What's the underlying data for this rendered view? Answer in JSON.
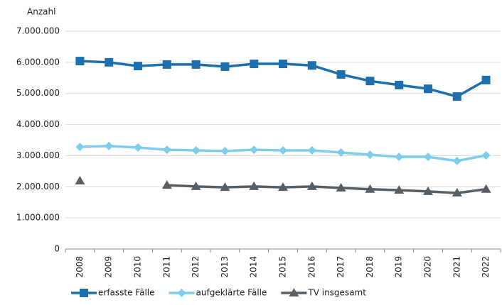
{
  "chart_data": {
    "type": "line",
    "y_axis_label": "Anzahl",
    "categories": [
      "2008",
      "2009",
      "2010",
      "2011",
      "2012",
      "2013",
      "2014",
      "2015",
      "2016",
      "2017",
      "2018",
      "2019",
      "2020",
      "2021",
      "2022"
    ],
    "ylim": [
      0,
      7000000
    ],
    "yticks": [
      0,
      {
        "value": 1000000,
        "label": "1.000.000"
      },
      {
        "value": 2000000,
        "label": "2.000.000"
      },
      {
        "value": 3000000,
        "label": "3.000.000"
      },
      {
        "value": 4000000,
        "label": "4.000.000"
      },
      {
        "value": 5000000,
        "label": "5.000.000"
      },
      {
        "value": 6000000,
        "label": "6.000.000"
      },
      {
        "value": 7000000,
        "label": "7.000.000"
      }
    ],
    "grid": true,
    "legend": "bottom",
    "series": [
      {
        "name": "erfasste Fälle",
        "color": "#1d6fae",
        "marker": "square",
        "values": [
          6040000,
          6000000,
          5880000,
          5930000,
          5930000,
          5860000,
          5950000,
          5950000,
          5900000,
          5610000,
          5400000,
          5270000,
          5150000,
          4900000,
          5430000
        ]
      },
      {
        "name": "aufgeklärte Fälle",
        "color": "#7fcdec",
        "marker": "diamond",
        "values": [
          3280000,
          3310000,
          3260000,
          3190000,
          3170000,
          3150000,
          3190000,
          3170000,
          3170000,
          3100000,
          3030000,
          2960000,
          2960000,
          2830000,
          3010000
        ]
      },
      {
        "name": "TV insgesamt",
        "color": "#575f66",
        "marker": "triangle",
        "values": [
          2190000,
          null,
          null,
          2050000,
          2010000,
          1980000,
          2010000,
          1980000,
          2010000,
          1960000,
          1920000,
          1890000,
          1850000,
          1800000,
          1920000
        ]
      }
    ]
  }
}
